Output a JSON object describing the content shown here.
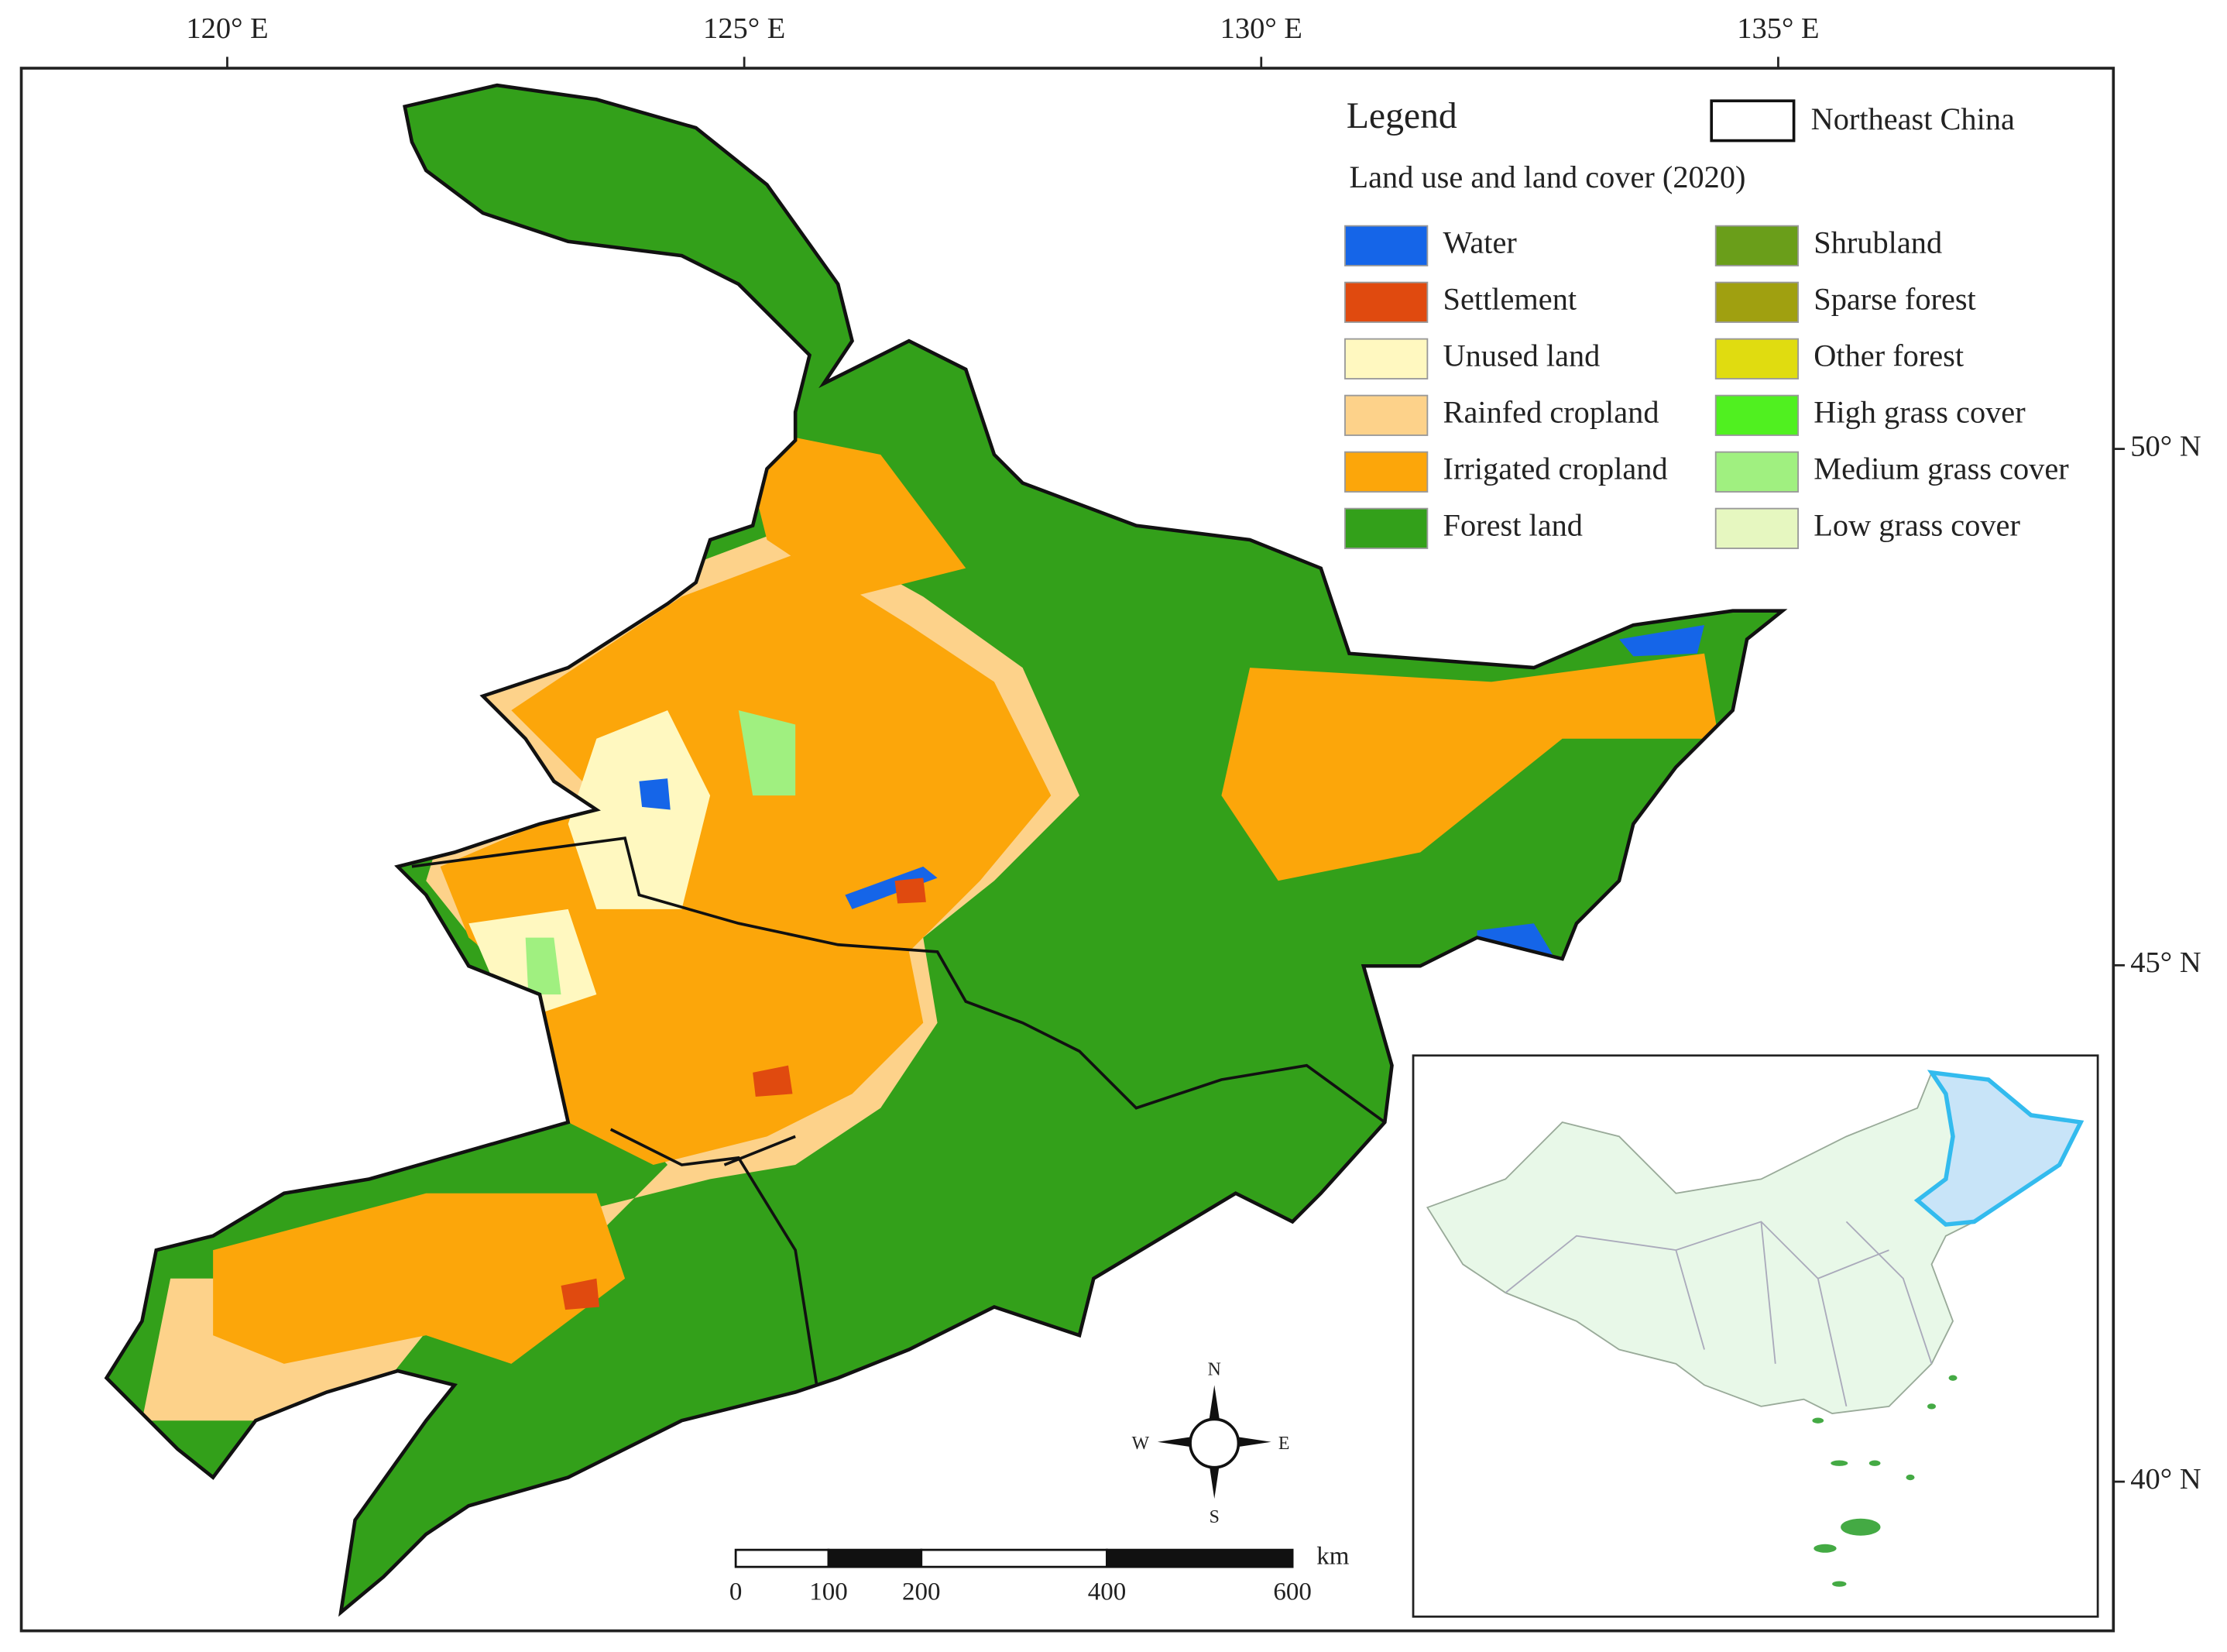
{
  "map": {
    "lon_ticks": [
      {
        "value": 120,
        "label": "120° E"
      },
      {
        "value": 125,
        "label": "125° E"
      },
      {
        "value": 130,
        "label": "130° E"
      },
      {
        "value": 135,
        "label": "135° E"
      }
    ],
    "lat_ticks": [
      {
        "value": 50,
        "label": "50° N"
      },
      {
        "value": 45,
        "label": "45° N"
      },
      {
        "value": 40,
        "label": "40° N"
      }
    ],
    "legend": {
      "title": "Legend",
      "boundary": "Northeast China",
      "subtitle": "Land use and land cover (2020)",
      "items": [
        {
          "name": "Water",
          "color": "#1565e8"
        },
        {
          "name": "Settlement",
          "color": "#e04a0f"
        },
        {
          "name": "Unused land",
          "color": "#fff8c0"
        },
        {
          "name": "Rainfed cropland",
          "color": "#fdd28a"
        },
        {
          "name": "Irrigated cropland",
          "color": "#fca60a"
        },
        {
          "name": "Forest land",
          "color": "#33a01a"
        },
        {
          "name": "Shrubland",
          "color": "#6a9e1a"
        },
        {
          "name": "Sparse forest",
          "color": "#a0a010"
        },
        {
          "name": "Other forest",
          "color": "#e0dc10"
        },
        {
          "name": "High grass cover",
          "color": "#50f020"
        },
        {
          "name": "Medium grass cover",
          "color": "#a0f080"
        },
        {
          "name": "Low grass cover",
          "color": "#e6f7c0"
        }
      ]
    },
    "scale_bar": {
      "ticks": [
        0,
        100,
        200,
        400,
        600
      ],
      "unit": "km"
    },
    "compass": {
      "n": "N",
      "s": "S",
      "e": "E",
      "w": "W"
    }
  }
}
